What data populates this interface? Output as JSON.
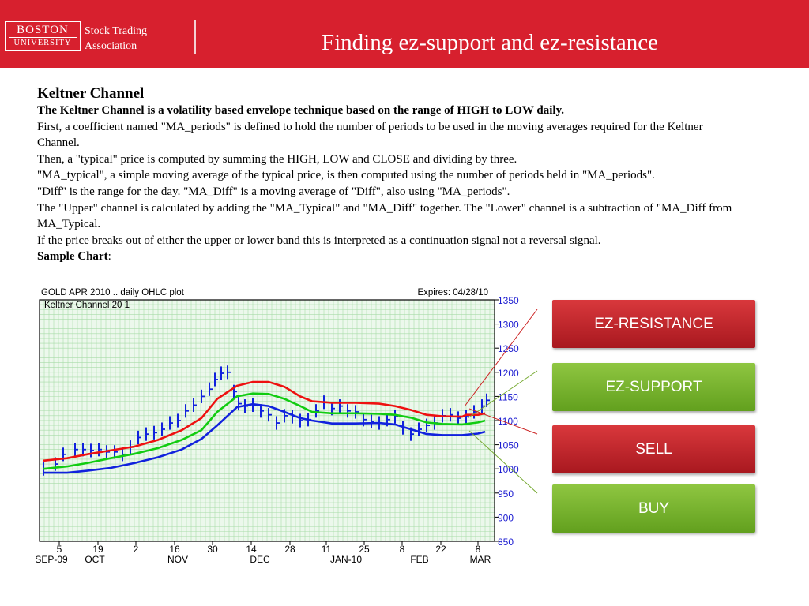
{
  "header": {
    "logo_top": "BOSTON",
    "logo_bottom": "UNIVERSITY",
    "org_line1": "Stock Trading",
    "org_line2": "Association",
    "title": "Finding ez-support and ez-resistance"
  },
  "content": {
    "heading": "Keltner Channel",
    "intro_bold": "The Keltner Channel is a volatility based envelope technique based on the range of HIGH to LOW daily.",
    "para1": "First, a coefficient named \"MA_periods\" is defined to hold the number of periods to be used in the moving averages required for the Keltner Channel.",
    "para2": "Then, a \"typical\" price is computed by summing the HIGH, LOW and CLOSE and dividing by three.",
    "para3": "\"MA_typical\", a simple moving average of the typical price, is then computed using the number of periods held in \"MA_periods\".",
    "para4": "\"Diff\" is the range for the day. \"MA_Diff\" is a moving average of \"Diff\", also using \"MA_periods\".",
    "para5": "The \"Upper\" channel is calculated by adding the \"MA_Typical\" and \"MA_Diff\" together. The \"Lower\" channel is a subtraction of \"MA_Diff from MA_Typical.",
    "para6": "If the price breaks out of either the upper or lower band this is interpreted as a continuation signal not a reversal signal.",
    "sample_label": "Sample Chart",
    "sample_colon": ":"
  },
  "chart": {
    "title_left": "GOLD APR 2010 .. daily OHLC plot",
    "title_right": "Expires: 04/28/10",
    "legend": "Keltner Channel   20    1",
    "y_ticks": [
      "1350",
      "1300",
      "1250",
      "1200",
      "1150",
      "1100",
      "1050",
      "1000",
      "950",
      "900",
      "850"
    ],
    "x_days": [
      "5",
      "19",
      "2",
      "16",
      "30",
      "14",
      "28",
      "11",
      "25",
      "8",
      "22",
      "8"
    ],
    "x_months": [
      "SEP-09",
      "OCT",
      "NOV",
      "DEC",
      "JAN-10",
      "FEB",
      "MAR"
    ],
    "colors": {
      "upper": "#ee1111",
      "middle": "#11cc11",
      "lower": "#1122dd",
      "price": "#1122dd",
      "grid": "#a8dca8"
    }
  },
  "buttons": {
    "resistance": "EZ-RESISTANCE",
    "support": "EZ-SUPPORT",
    "sell": "SELL",
    "buy": "BUY"
  }
}
